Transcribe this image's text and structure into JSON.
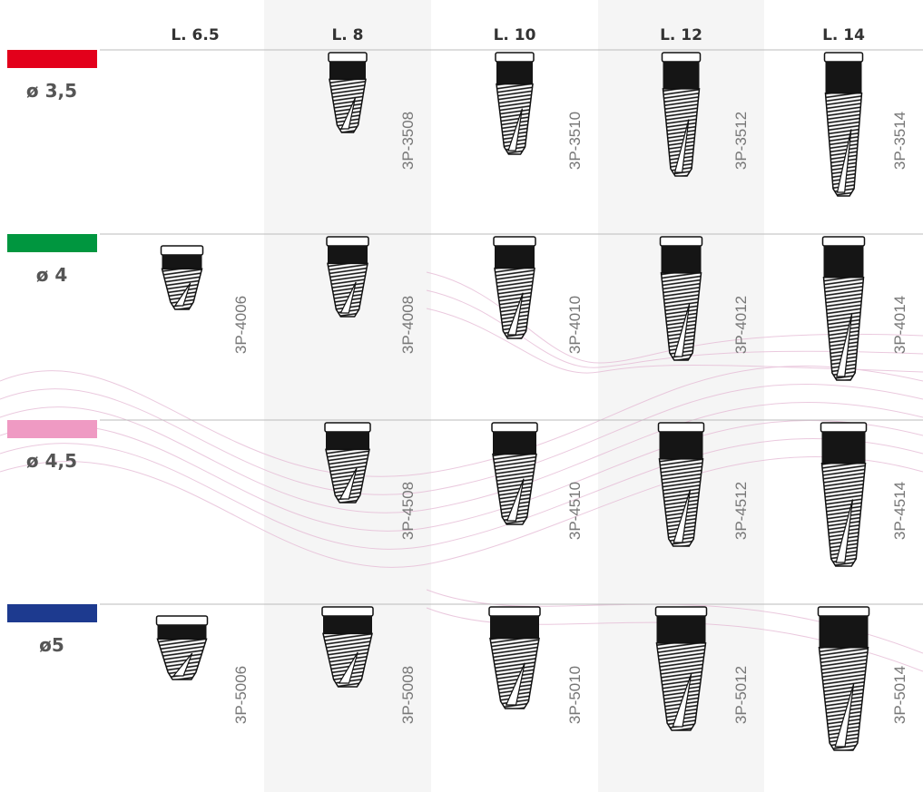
{
  "header": {
    "columns": [
      "L. 6.5",
      "L. 8",
      "L. 10",
      "L. 12",
      "L. 14"
    ]
  },
  "rows": [
    {
      "label": "ø 3,5",
      "color": "#e3001b",
      "codes": [
        null,
        "3P-3508",
        "3P-3510",
        "3P-3512",
        "3P-3514"
      ]
    },
    {
      "label": "ø 4",
      "color": "#00963f",
      "codes": [
        "3P-4006",
        "3P-4008",
        "3P-4010",
        "3P-4012",
        "3P-4014"
      ]
    },
    {
      "label": "ø 4,5",
      "color": "#ef9ac3",
      "codes": [
        null,
        "3P-4508",
        "3P-4510",
        "3P-4512",
        "3P-4514"
      ]
    },
    {
      "label": "ø5",
      "color": "#1d3a8f",
      "codes": [
        "3P-5006",
        "3P-5008",
        "3P-5010",
        "3P-5012",
        "3P-5014"
      ]
    }
  ]
}
